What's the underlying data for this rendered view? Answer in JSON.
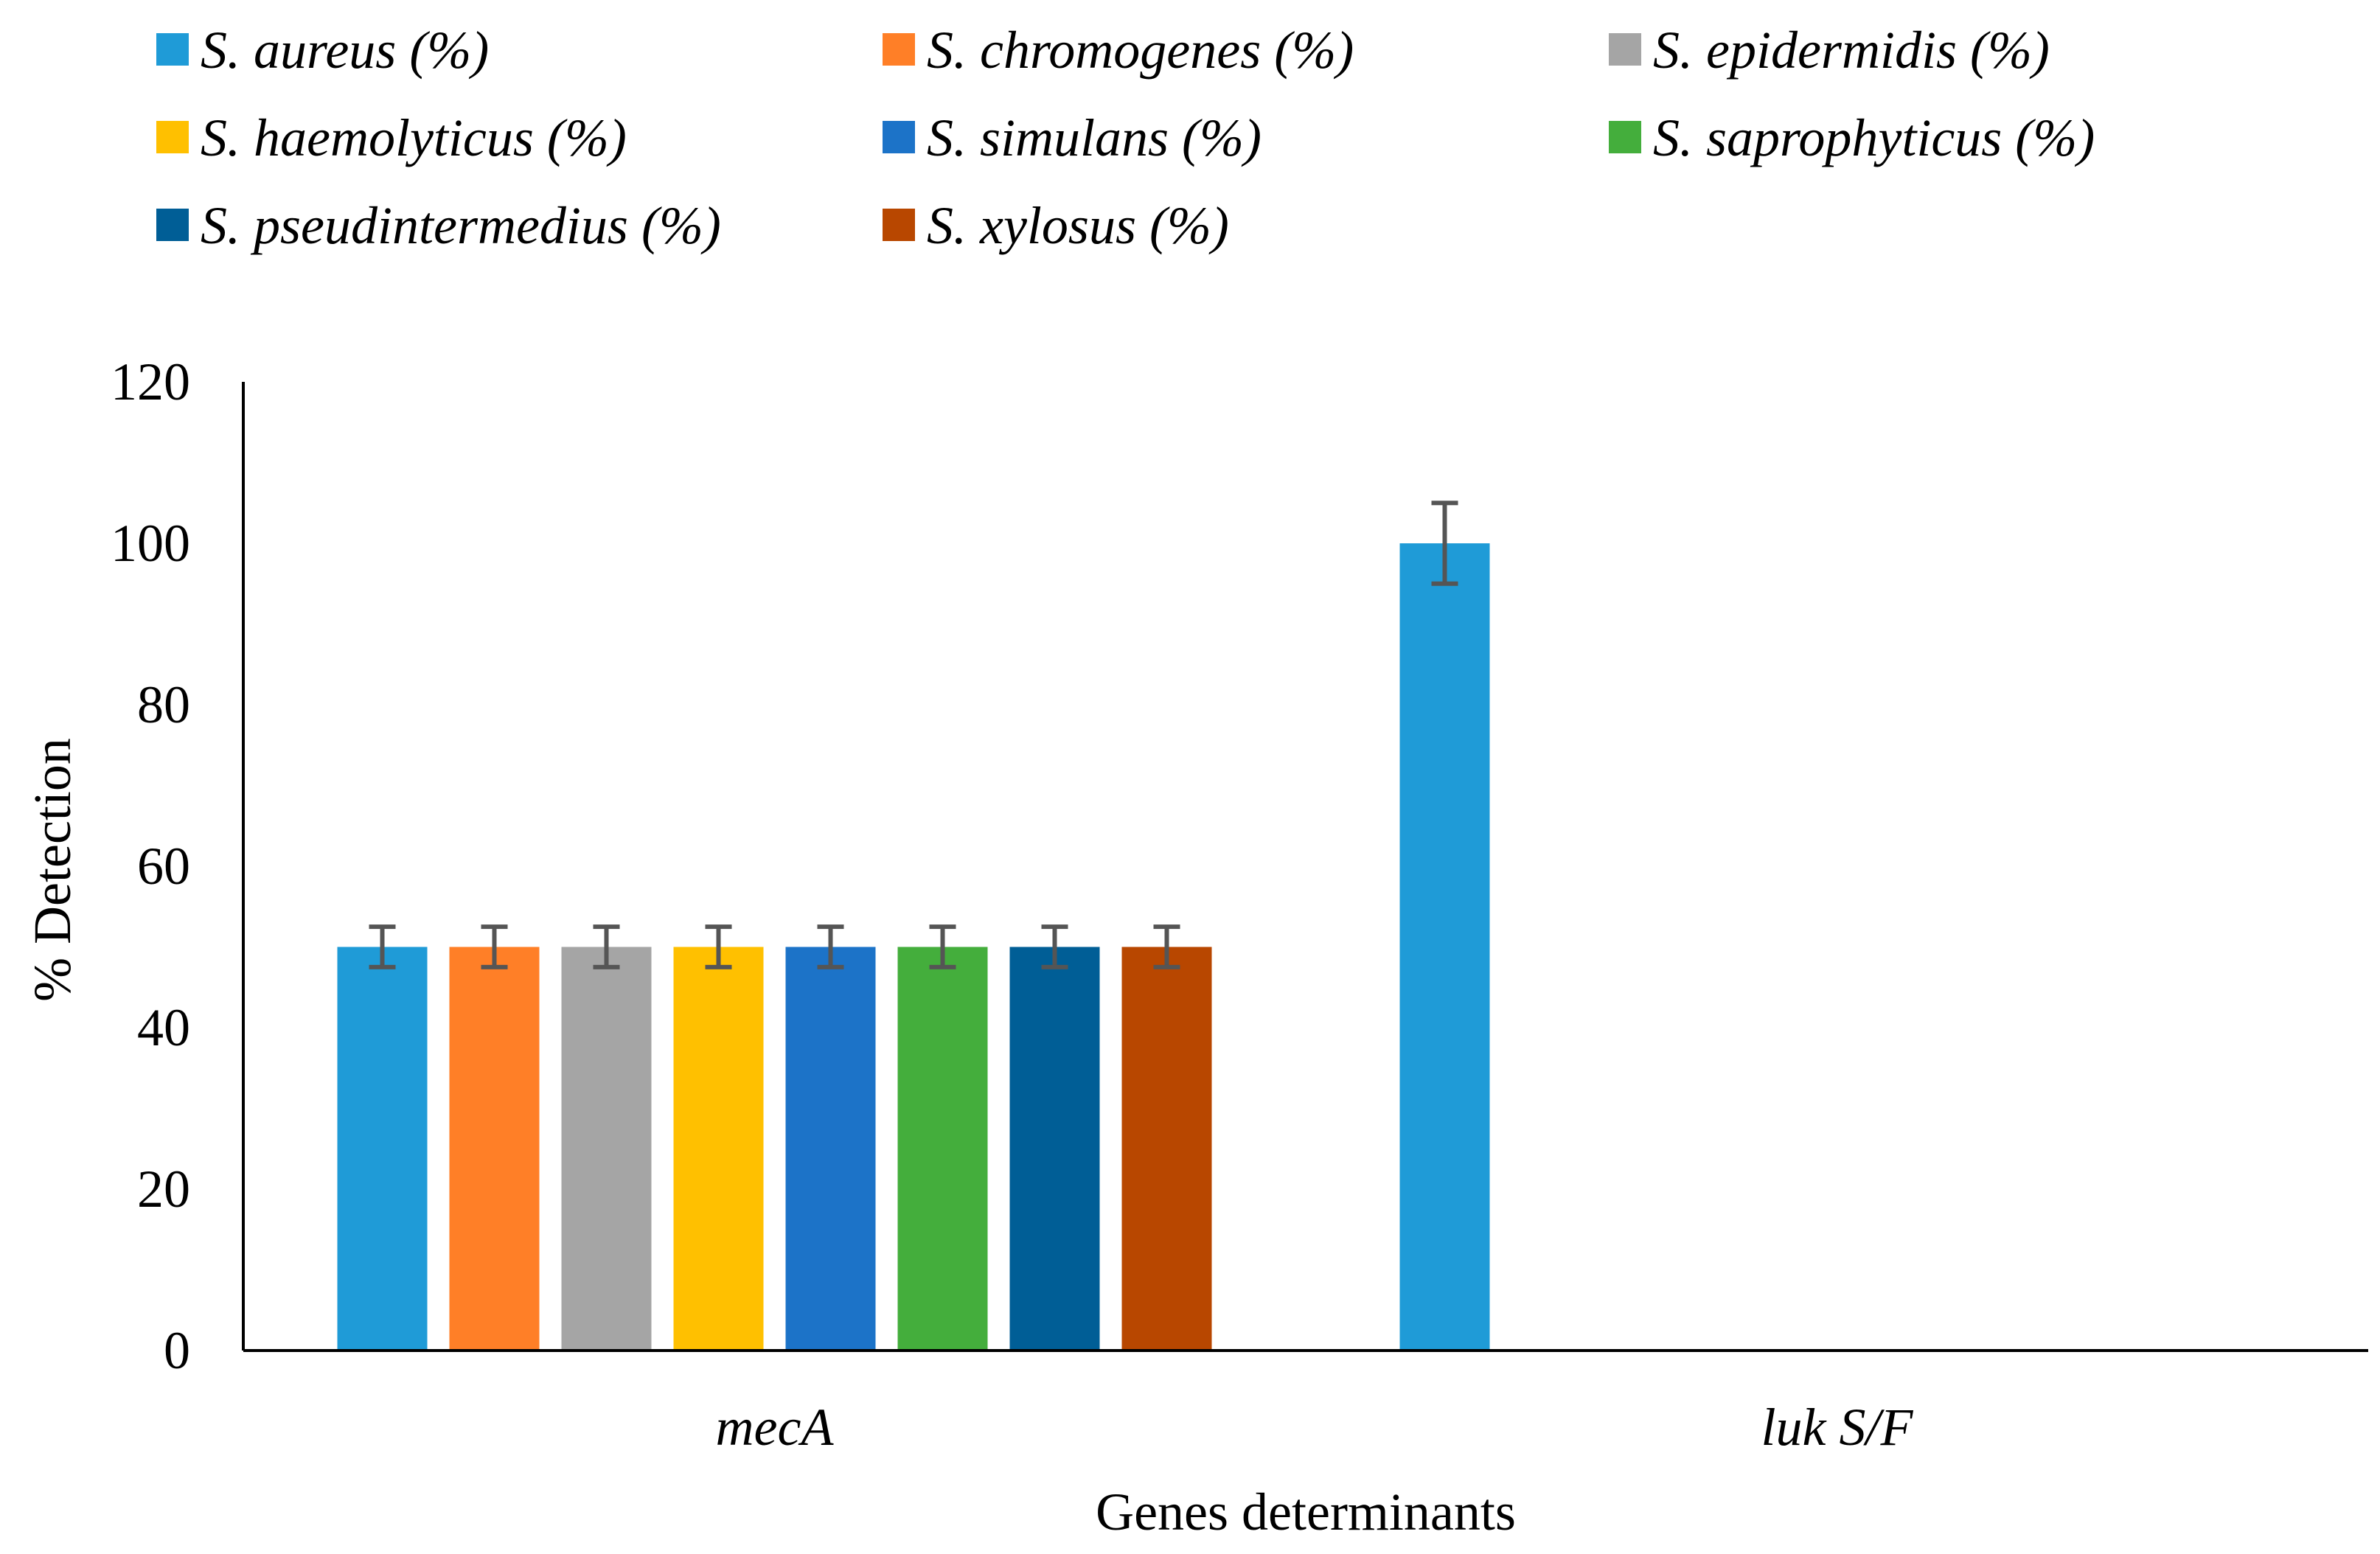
{
  "chart_data": {
    "type": "bar",
    "title": "",
    "xlabel": "Genes determinants",
    "ylabel": "% Detection",
    "ylim": [
      0,
      120
    ],
    "yticks": [
      0,
      20,
      40,
      60,
      80,
      100,
      120
    ],
    "legend_position": "top",
    "categories": [
      "mecA",
      "luk S/F"
    ],
    "series": [
      {
        "name": "S. aureus (%)",
        "color": "#1F9BD7",
        "values": [
          50,
          100
        ],
        "errors": [
          2.5,
          5
        ]
      },
      {
        "name": "S. chromogenes (%)",
        "color": "#FF7F27",
        "values": [
          50,
          0
        ],
        "errors": [
          2.5,
          0
        ]
      },
      {
        "name": "S. epidermidis (%)",
        "color": "#A5A5A5",
        "values": [
          50,
          0
        ],
        "errors": [
          2.5,
          0
        ]
      },
      {
        "name": "S. haemolyticus (%)",
        "color": "#FFC000",
        "values": [
          50,
          0
        ],
        "errors": [
          2.5,
          0
        ]
      },
      {
        "name": "S. simulans (%)",
        "color": "#1C73C8",
        "values": [
          50,
          0
        ],
        "errors": [
          2.5,
          0
        ]
      },
      {
        "name": "S. saprophyticus (%)",
        "color": "#44AE3C",
        "values": [
          50,
          0
        ],
        "errors": [
          2.5,
          0
        ]
      },
      {
        "name": "S. pseudintermedius (%)",
        "color": "#005E96",
        "values": [
          50,
          0
        ],
        "errors": [
          2.5,
          0
        ]
      },
      {
        "name": "S. xylosus (%)",
        "color": "#B84700",
        "values": [
          50,
          0
        ],
        "errors": [
          2.5,
          0
        ]
      }
    ]
  }
}
